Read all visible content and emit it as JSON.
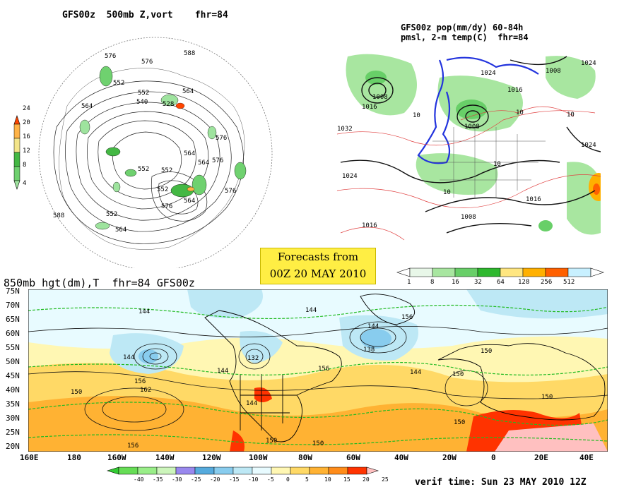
{
  "panel_500mb": {
    "title": "GFS00z  500mb Z,vort    fhr=84",
    "contour_labels": [
      "576",
      "588",
      "564",
      "552",
      "540",
      "528",
      "564",
      "576",
      "552",
      "564",
      "552",
      "576",
      "588",
      "564",
      "552",
      "552",
      "576",
      "564",
      "576",
      "564",
      "552",
      "576"
    ],
    "colorbar_ticks": [
      "4",
      "8",
      "12",
      "16",
      "20",
      "24"
    ],
    "colors": [
      "#9ee39e",
      "#6fd16f",
      "#44b844",
      "#f3e58a",
      "#ffb347",
      "#ff4500"
    ]
  },
  "panel_precip": {
    "title_line1": "GFS00z pop(mm/dy) 60-84h",
    "title_line2": "pmsl, 2-m temp(C)  fhr=84",
    "contour_labels": [
      "1024",
      "1008",
      "1016",
      "1008",
      "1016",
      "1024",
      "1008",
      "1024",
      "1016",
      "1016",
      "1008",
      "1024",
      "1032",
      "10",
      "10",
      "10",
      "10",
      "10"
    ],
    "colorbar_ticks": [
      "1",
      "8",
      "16",
      "32",
      "64",
      "128",
      "256",
      "512"
    ],
    "colors": [
      "#e8f7e8",
      "#a8e6a0",
      "#68cf68",
      "#2eb82e",
      "#ffe680",
      "#ffb000",
      "#ff6000",
      "#c8f0ff"
    ]
  },
  "banner": {
    "line1": "Forecasts from",
    "line2": "00Z 20 MAY 2010"
  },
  "panel_850mb": {
    "title": "850mb hgt(dm),T  fhr=84 GFS00z",
    "lat_labels": [
      "75N",
      "70N",
      "65N",
      "60N",
      "55N",
      "50N",
      "45N",
      "40N",
      "35N",
      "30N",
      "25N",
      "20N"
    ],
    "lon_labels": [
      "160E",
      "180",
      "160W",
      "140W",
      "120W",
      "100W",
      "80W",
      "60W",
      "40W",
      "20W",
      "0",
      "20E",
      "40E"
    ],
    "contour_labels": [
      "144",
      "144",
      "144",
      "132",
      "144",
      "156",
      "162",
      "156",
      "144",
      "150",
      "138",
      "144",
      "156",
      "144",
      "150",
      "150",
      "150",
      "150",
      "150",
      "150",
      "156"
    ],
    "colorbar_ticks": [
      "-40",
      "-35",
      "-30",
      "-25",
      "-20",
      "-15",
      "-10",
      "-5",
      "0",
      "5",
      "10",
      "15",
      "20",
      "25"
    ],
    "colors": [
      "#33cc33",
      "#66dd55",
      "#99ee88",
      "#ccf5bb",
      "#9988ee",
      "#55aadd",
      "#88ccee",
      "#bde8f5",
      "#e8fbff",
      "#fff7b3",
      "#ffd966",
      "#ffb233",
      "#ff8c1a",
      "#ff3300",
      "#ffc0c0"
    ],
    "verif_time": "verif time: Sun 23 MAY 2010 12Z"
  }
}
